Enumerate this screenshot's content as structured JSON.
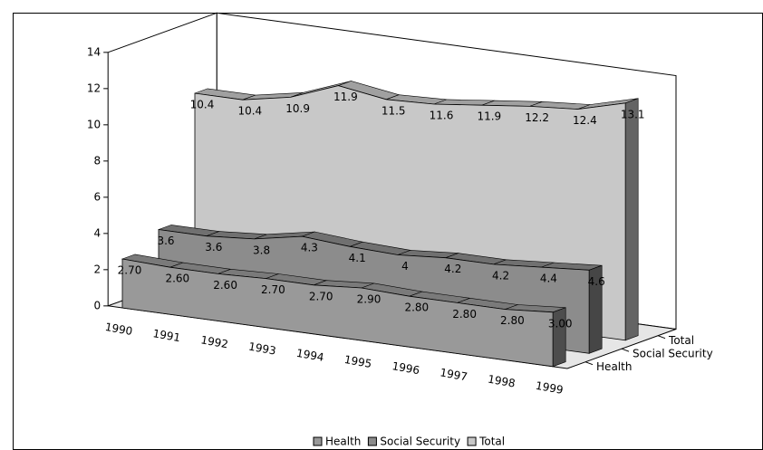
{
  "chart_data": {
    "type": "area3d",
    "categories": [
      "1990",
      "1991",
      "1992",
      "1993",
      "1994",
      "1995",
      "1996",
      "1997",
      "1998",
      "1999"
    ],
    "series": [
      {
        "name": "Health",
        "color": "#999999",
        "values": [
          2.7,
          2.6,
          2.6,
          2.7,
          2.7,
          2.9,
          2.8,
          2.8,
          2.8,
          3.0
        ],
        "value_labels": [
          "2.70",
          "2.60",
          "2.60",
          "2.70",
          "2.70",
          "2.90",
          "2.80",
          "2.80",
          "2.80",
          "3.00"
        ]
      },
      {
        "name": "Social Security",
        "color": "#8c8c8c",
        "values": [
          3.6,
          3.6,
          3.8,
          4.3,
          4.1,
          4,
          4.2,
          4.2,
          4.4,
          4.6
        ]
      },
      {
        "name": "Total",
        "color": "#c8c8c8",
        "values": [
          10.4,
          10.4,
          10.9,
          11.9,
          11.5,
          11.6,
          11.9,
          12.2,
          12.4,
          13.1
        ]
      }
    ],
    "ylim": [
      0,
      14
    ],
    "yticks": [
      0,
      2,
      4,
      6,
      8,
      10,
      12,
      14
    ],
    "legend": "bottom"
  }
}
